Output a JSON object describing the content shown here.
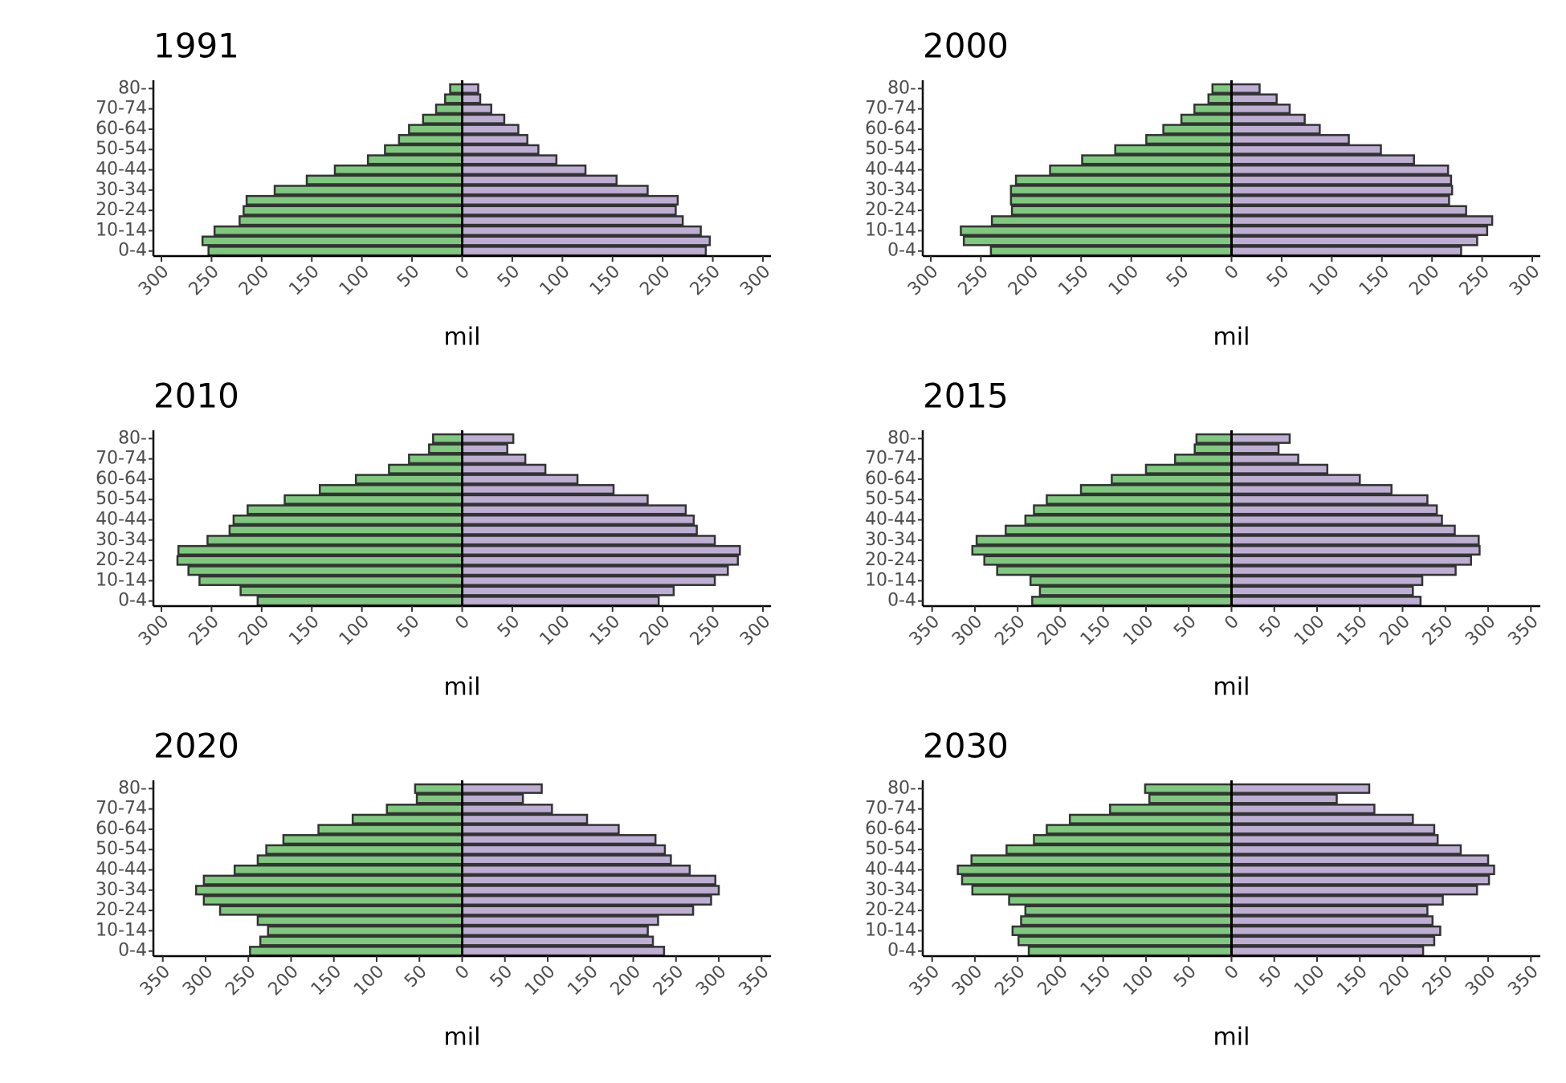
{
  "chart_data": [
    {
      "type": "pyramid",
      "title": "1991",
      "xlabel": "mil",
      "categories": [
        "0-4",
        null,
        "10-14",
        null,
        "20-24",
        null,
        "30-34",
        null,
        "40-44",
        null,
        "50-54",
        null,
        "60-64",
        null,
        "70-74",
        null,
        "80-"
      ],
      "series": [
        {
          "color": "#7fc97f",
          "values": [
            -253,
            -259,
            -247,
            -222,
            -218,
            -215,
            -187,
            -155,
            -127,
            -94,
            -77,
            -63,
            -53,
            -39,
            -26,
            -17,
            -12
          ]
        },
        {
          "color": "#beaed4",
          "values": [
            243,
            247,
            238,
            220,
            213,
            215,
            185,
            154,
            123,
            94,
            76,
            65,
            56,
            42,
            29,
            18,
            16
          ]
        }
      ],
      "xlim": [
        -308,
        308
      ],
      "xticks": [
        {
          "value": -300,
          "label": "300"
        },
        {
          "value": -250,
          "label": "250"
        },
        {
          "value": -200,
          "label": "200"
        },
        {
          "value": -150,
          "label": "150"
        },
        {
          "value": -100,
          "label": "100"
        },
        {
          "value": -50,
          "label": "50"
        },
        0,
        50,
        100,
        150,
        200,
        250,
        300
      ]
    },
    {
      "type": "pyramid",
      "title": "2000",
      "xlabel": "mil",
      "categories": [
        "0-4",
        null,
        "10-14",
        null,
        "20-24",
        null,
        "30-34",
        null,
        "40-44",
        null,
        "50-54",
        null,
        "60-64",
        null,
        "70-74",
        null,
        "80-"
      ],
      "series": [
        {
          "color": "#7fc97f",
          "values": [
            -240,
            -267,
            -270,
            -239,
            -219,
            -220,
            -220,
            -215,
            -181,
            -149,
            -116,
            -85,
            -68,
            -50,
            -37,
            -23,
            -19
          ]
        },
        {
          "color": "#beaed4",
          "values": [
            229,
            245,
            255,
            260,
            234,
            217,
            220,
            219,
            216,
            182,
            149,
            117,
            88,
            73,
            58,
            45,
            28
          ]
        }
      ],
      "xlim": [
        -308,
        308
      ],
      "xticks": [
        {
          "value": -300,
          "label": "300"
        },
        {
          "value": -250,
          "label": "250"
        },
        {
          "value": -200,
          "label": "200"
        },
        {
          "value": -150,
          "label": "150"
        },
        {
          "value": -100,
          "label": "100"
        },
        {
          "value": -50,
          "label": "50"
        },
        0,
        50,
        100,
        150,
        200,
        250,
        300
      ]
    },
    {
      "type": "pyramid",
      "title": "2010",
      "xlabel": "mil",
      "categories": [
        "0-4",
        null,
        "10-14",
        null,
        "20-24",
        null,
        "30-34",
        null,
        "40-44",
        null,
        "50-54",
        null,
        "60-64",
        null,
        "70-74",
        null,
        "80-"
      ],
      "series": [
        {
          "color": "#7fc97f",
          "values": [
            -204,
            -221,
            -262,
            -273,
            -284,
            -283,
            -254,
            -232,
            -228,
            -214,
            -177,
            -142,
            -106,
            -73,
            -53,
            -33,
            -29
          ]
        },
        {
          "color": "#beaed4",
          "values": [
            196,
            211,
            252,
            265,
            275,
            277,
            252,
            234,
            231,
            223,
            185,
            151,
            115,
            83,
            63,
            45,
            51
          ]
        }
      ],
      "xlim": [
        -308,
        308
      ],
      "xticks": [
        {
          "value": -300,
          "label": "300"
        },
        {
          "value": -250,
          "label": "250"
        },
        {
          "value": -200,
          "label": "200"
        },
        {
          "value": -150,
          "label": "150"
        },
        {
          "value": -100,
          "label": "100"
        },
        {
          "value": -50,
          "label": "50"
        },
        0,
        50,
        100,
        150,
        200,
        250,
        300
      ]
    },
    {
      "type": "pyramid",
      "title": "2015",
      "xlabel": "mil",
      "categories": [
        "0-4",
        null,
        "10-14",
        null,
        "20-24",
        null,
        "30-34",
        null,
        "40-44",
        null,
        "50-54",
        null,
        "60-64",
        null,
        "70-74",
        null,
        "80-"
      ],
      "series": [
        {
          "color": "#7fc97f",
          "values": [
            -233,
            -224,
            -235,
            -274,
            -289,
            -303,
            -298,
            -264,
            -241,
            -231,
            -216,
            -176,
            -140,
            -100,
            -66,
            -43,
            -41
          ]
        },
        {
          "color": "#beaed4",
          "values": [
            221,
            212,
            223,
            262,
            280,
            290,
            289,
            261,
            246,
            240,
            229,
            187,
            150,
            112,
            78,
            55,
            68
          ]
        }
      ],
      "xlim": [
        -361,
        361
      ],
      "xticks": [
        {
          "value": -350,
          "label": "350"
        },
        {
          "value": -300,
          "label": "300"
        },
        {
          "value": -250,
          "label": "250"
        },
        {
          "value": -200,
          "label": "200"
        },
        {
          "value": -150,
          "label": "150"
        },
        {
          "value": -100,
          "label": "100"
        },
        {
          "value": -50,
          "label": "50"
        },
        0,
        50,
        100,
        150,
        200,
        250,
        300,
        350
      ]
    },
    {
      "type": "pyramid",
      "title": "2020",
      "xlabel": "mil",
      "categories": [
        "0-4",
        null,
        "10-14",
        null,
        "20-24",
        null,
        "30-34",
        null,
        "40-44",
        null,
        "50-54",
        null,
        "60-64",
        null,
        "70-74",
        null,
        "80-"
      ],
      "series": [
        {
          "color": "#7fc97f",
          "values": [
            -248,
            -236,
            -227,
            -239,
            -283,
            -302,
            -311,
            -302,
            -266,
            -239,
            -229,
            -209,
            -168,
            -128,
            -88,
            -53,
            -55
          ]
        },
        {
          "color": "#beaed4",
          "values": [
            236,
            223,
            217,
            229,
            270,
            291,
            300,
            296,
            266,
            244,
            237,
            226,
            183,
            146,
            105,
            71,
            93
          ]
        }
      ],
      "xlim": [
        -361,
        361
      ],
      "xticks": [
        {
          "value": -350,
          "label": "350"
        },
        {
          "value": -300,
          "label": "300"
        },
        {
          "value": -250,
          "label": "250"
        },
        {
          "value": -200,
          "label": "200"
        },
        {
          "value": -150,
          "label": "150"
        },
        {
          "value": -100,
          "label": "100"
        },
        {
          "value": -50,
          "label": "50"
        },
        0,
        50,
        100,
        150,
        200,
        250,
        300,
        350
      ]
    },
    {
      "type": "pyramid",
      "title": "2030",
      "xlabel": "mil",
      "categories": [
        "0-4",
        null,
        "10-14",
        null,
        "20-24",
        null,
        "30-34",
        null,
        "40-44",
        null,
        "50-54",
        null,
        "60-64",
        null,
        "70-74",
        null,
        "80-"
      ],
      "series": [
        {
          "color": "#7fc97f",
          "values": [
            -237,
            -249,
            -256,
            -246,
            -241,
            -260,
            -303,
            -315,
            -320,
            -304,
            -263,
            -231,
            -216,
            -189,
            -142,
            -96,
            -101
          ]
        },
        {
          "color": "#beaed4",
          "values": [
            224,
            237,
            244,
            235,
            229,
            247,
            287,
            301,
            307,
            300,
            268,
            241,
            237,
            212,
            167,
            123,
            161
          ]
        }
      ],
      "xlim": [
        -361,
        361
      ],
      "xticks": [
        {
          "value": -350,
          "label": "350"
        },
        {
          "value": -300,
          "label": "300"
        },
        {
          "value": -250,
          "label": "250"
        },
        {
          "value": -200,
          "label": "200"
        },
        {
          "value": -150,
          "label": "150"
        },
        {
          "value": -100,
          "label": "100"
        },
        {
          "value": -50,
          "label": "50"
        },
        0,
        50,
        100,
        150,
        200,
        250,
        300,
        350
      ]
    }
  ]
}
